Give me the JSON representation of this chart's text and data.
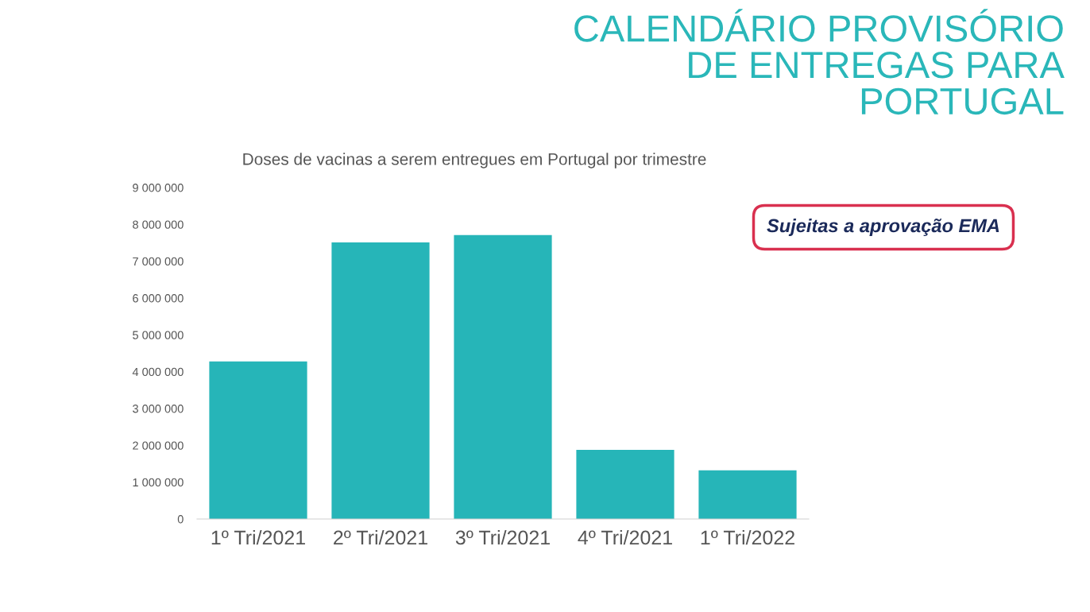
{
  "chart_data": {
    "type": "bar",
    "title": "CALENDÁRIO PROVISÓRIO\nDE ENTREGAS PARA\nPORTUGAL",
    "subtitle": "Doses de vacinas a serem entregues em Portugal por trimestre",
    "annotations": [
      "Sujeitas a aprovação EMA"
    ],
    "categories": [
      "1º Tri/2021",
      "2º Tri/2021",
      "3º Tri/2021",
      "4º Tri/2021",
      "1º Tri/2022"
    ],
    "values": [
      4280000,
      7510000,
      7710000,
      1880000,
      1320000
    ],
    "color": "#26b5b8",
    "ylim": [
      0,
      9000000
    ],
    "yticks": [
      {
        "value": 0,
        "label": "0"
      },
      {
        "value": 1000000,
        "label": "1 000 000"
      },
      {
        "value": 2000000,
        "label": "2 000 000"
      },
      {
        "value": 3000000,
        "label": "3 000 000"
      },
      {
        "value": 4000000,
        "label": "4 000 000"
      },
      {
        "value": 5000000,
        "label": "5 000 000"
      },
      {
        "value": 6000000,
        "label": "6 000 000"
      },
      {
        "value": 7000000,
        "label": "7 000 000"
      },
      {
        "value": 8000000,
        "label": "8 000 000"
      },
      {
        "value": 9000000,
        "label": "9 000 000"
      }
    ],
    "grid": false,
    "legend": false
  }
}
